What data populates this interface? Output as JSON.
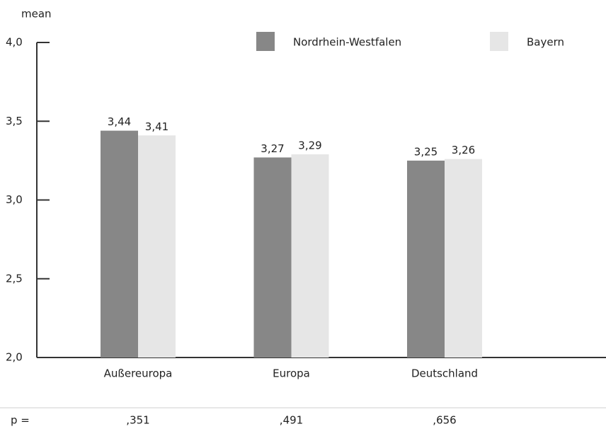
{
  "chart_data": {
    "type": "bar",
    "y_axis_label": "mean",
    "categories": [
      "Außereuropa",
      "Europa",
      "Deutschland"
    ],
    "series": [
      {
        "name": "Nordrhein-Westfalen",
        "color": "#878787",
        "values": [
          3.44,
          3.27,
          3.25
        ],
        "value_labels": [
          "3,44",
          "3,27",
          "3,25"
        ]
      },
      {
        "name": "Bayern",
        "color": "#e6e6e6",
        "values": [
          3.41,
          3.29,
          3.26
        ],
        "value_labels": [
          "3,41",
          "3,29",
          "3,26"
        ]
      }
    ],
    "ylim": [
      2.0,
      4.0
    ],
    "yticks": [
      {
        "value": 2.0,
        "label": "2,0"
      },
      {
        "value": 2.5,
        "label": "2,5"
      },
      {
        "value": 3.0,
        "label": "3,0"
      },
      {
        "value": 3.5,
        "label": "3,5"
      },
      {
        "value": 4.0,
        "label": "4,0"
      }
    ],
    "legend": "top",
    "p_label": "p =",
    "p_values": [
      ",351",
      ",491",
      ",656"
    ]
  }
}
